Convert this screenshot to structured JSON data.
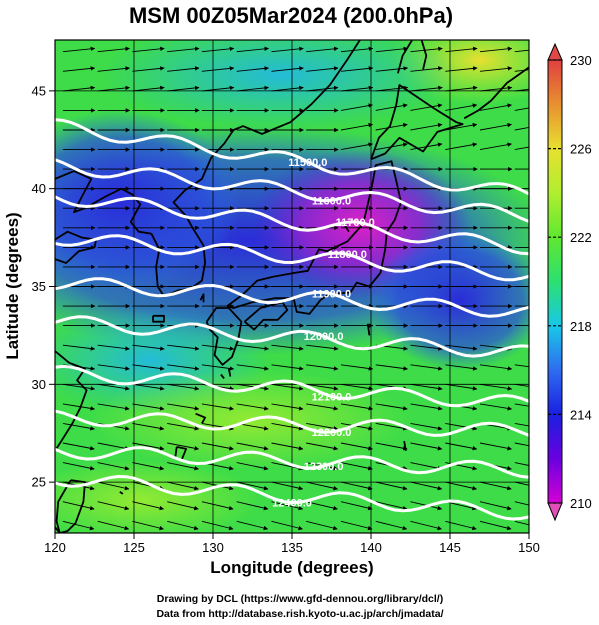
{
  "title": "MSM 00Z05Mar2024 (200.0hPa)",
  "x_axis": {
    "label": "Longitude (degrees)",
    "range": [
      120,
      150
    ],
    "ticks": [
      "120",
      "125",
      "130",
      "135",
      "140",
      "145",
      "150"
    ]
  },
  "y_axis": {
    "label": "Latitude (degrees)",
    "range": [
      22.4,
      47.6
    ],
    "ticks": [
      "25",
      "30",
      "35",
      "40",
      "45"
    ]
  },
  "colorbar": {
    "range": [
      210,
      230
    ],
    "ticks": [
      "210",
      "214",
      "218",
      "222",
      "226",
      "230"
    ],
    "colors": [
      "#d400d4",
      "#6a00e0",
      "#1a20e0",
      "#2f6cf0",
      "#18c8e8",
      "#2ce070",
      "#5fe830",
      "#b0ee30",
      "#e8e030",
      "#e89030",
      "#e04040"
    ]
  },
  "contours": [
    {
      "label": "11500.0",
      "lat_at_120": 43.2,
      "lat_at_150": 39.7
    },
    {
      "label": "11600.0",
      "lat_at_120": 41.2,
      "lat_at_150": 38.6
    },
    {
      "label": "11700.0",
      "lat_at_120": 39.6,
      "lat_at_150": 37.0
    },
    {
      "label": "11800.0",
      "lat_at_120": 37.5,
      "lat_at_150": 35.6
    },
    {
      "label": "11900.0",
      "lat_at_120": 35.2,
      "lat_at_150": 33.7
    },
    {
      "label": "12000.0",
      "lat_at_120": 33.2,
      "lat_at_150": 31.6
    },
    {
      "label": "12100.0",
      "lat_at_120": 30.6,
      "lat_at_150": 29.0
    },
    {
      "label": "12200.0",
      "lat_at_120": 28.3,
      "lat_at_150": 27.6
    },
    {
      "label": "12300.0",
      "lat_at_120": 26.6,
      "lat_at_150": 25.6
    },
    {
      "label": "12400.0",
      "lat_at_120": 25.2,
      "lat_at_150": 23.4
    }
  ],
  "credits": {
    "line1": "Drawing by DCL (https://www.gfd-dennou.org/library/dcl/)",
    "line2": "Data from http://database.rish.kyoto-u.ac.jp/arch/jmadata/"
  }
}
